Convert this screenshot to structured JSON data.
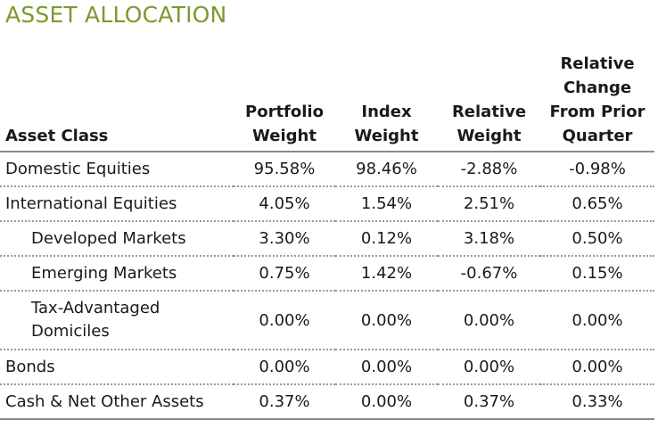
{
  "title": "ASSET ALLOCATION",
  "headers": {
    "asset_class": "Asset Class",
    "portfolio_weight": [
      "Portfolio",
      "Weight"
    ],
    "index_weight": [
      "Index",
      "Weight"
    ],
    "relative_weight": [
      "Relative",
      "Weight"
    ],
    "relative_change": [
      "Relative",
      "Change",
      "From Prior",
      "Quarter"
    ]
  },
  "rows": [
    {
      "asset": "Domestic Equities",
      "portfolio": "95.58%",
      "index": "98.46%",
      "relative": "-2.88%",
      "change": "-0.98%"
    },
    {
      "asset": "International Equities",
      "portfolio": "4.05%",
      "index": "1.54%",
      "relative": "2.51%",
      "change": "0.65%"
    },
    {
      "asset": "Developed Markets",
      "portfolio": "3.30%",
      "index": "0.12%",
      "relative": "3.18%",
      "change": "0.50%"
    },
    {
      "asset": "Emerging Markets",
      "portfolio": "0.75%",
      "index": "1.42%",
      "relative": "-0.67%",
      "change": "0.15%"
    },
    {
      "asset": "Tax-Advantaged Domiciles",
      "portfolio": "0.00%",
      "index": "0.00%",
      "relative": "0.00%",
      "change": "0.00%"
    },
    {
      "asset": "Bonds",
      "portfolio": "0.00%",
      "index": "0.00%",
      "relative": "0.00%",
      "change": "0.00%"
    },
    {
      "asset": "Cash & Net Other Assets",
      "portfolio": "0.37%",
      "index": "0.00%",
      "relative": "0.37%",
      "change": "0.33%"
    }
  ],
  "colors": {
    "title": "#7a9a2e",
    "text": "#1a1a1a",
    "rule": "#8a8a8a"
  }
}
